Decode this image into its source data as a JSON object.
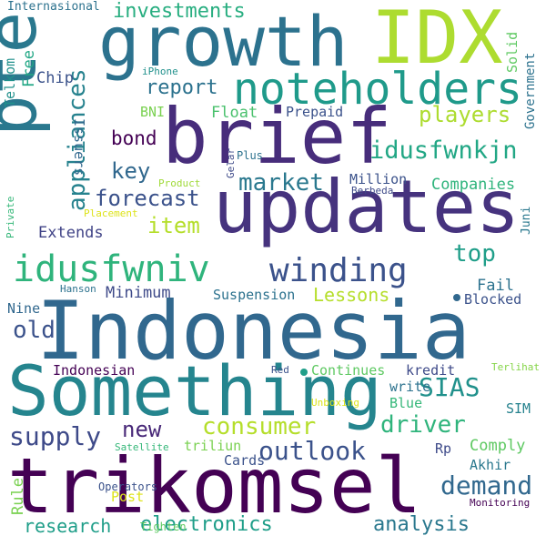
{
  "words": [
    {
      "text": "Indonesia",
      "color": "#31688e"
    },
    {
      "text": "trikomsel",
      "color": "#440154"
    },
    {
      "text": "updates",
      "color": "#46337e"
    },
    {
      "text": "Something",
      "color": "#25858e"
    },
    {
      "text": "brief",
      "color": "#472d7b"
    },
    {
      "text": "growth",
      "color": "#2c728e"
    },
    {
      "text": "IDX",
      "color": "#addc30"
    },
    {
      "text": "pte",
      "color": "#2a788e"
    },
    {
      "text": "noteholders",
      "color": "#1f9a8a"
    },
    {
      "text": "idusfwniv",
      "color": "#2fb47c"
    },
    {
      "text": "winding",
      "color": "#3b528b"
    },
    {
      "text": "idusfwnkjn",
      "color": "#22a785"
    },
    {
      "text": "market",
      "color": "#2a788e"
    },
    {
      "text": "appliances",
      "color": "#26828e"
    },
    {
      "text": "players",
      "color": "#addc30"
    },
    {
      "text": "consumer",
      "color": "#b5de2b"
    },
    {
      "text": "supply",
      "color": "#3e4a89"
    },
    {
      "text": "driver",
      "color": "#2fb47c"
    },
    {
      "text": "demand",
      "color": "#31688e"
    },
    {
      "text": "outlook",
      "color": "#3b528b"
    },
    {
      "text": "SIAS",
      "color": "#21918c"
    },
    {
      "text": "electronics",
      "color": "#1f9e89"
    },
    {
      "text": "research",
      "color": "#1f9e89"
    },
    {
      "text": "analysis",
      "color": "#2a788e"
    },
    {
      "text": "investments",
      "color": "#28ae80"
    },
    {
      "text": "report",
      "color": "#2c728e"
    },
    {
      "text": "forecast",
      "color": "#3b528b"
    },
    {
      "text": "item",
      "color": "#b5de2b"
    },
    {
      "text": "key",
      "color": "#31688e"
    },
    {
      "text": "bond",
      "color": "#440154"
    },
    {
      "text": "Lessons",
      "color": "#b5de2b"
    },
    {
      "text": "top",
      "color": "#1f9e89"
    },
    {
      "text": "old",
      "color": "#3b528b"
    },
    {
      "text": "new",
      "color": "#482878"
    },
    {
      "text": "Companies",
      "color": "#2fb47c"
    },
    {
      "text": "Extends",
      "color": "#414487"
    },
    {
      "text": "Float",
      "color": "#4ac16d"
    },
    {
      "text": "Fail",
      "color": "#2c728e"
    },
    {
      "text": "Minimum",
      "color": "#3e4a89"
    },
    {
      "text": "Suspension",
      "color": "#2c728e"
    },
    {
      "text": "Blocked",
      "color": "#3b528b"
    },
    {
      "text": "Nine",
      "color": "#31688e"
    },
    {
      "text": "Continues",
      "color": "#5ec962"
    },
    {
      "text": "Indonesian",
      "color": "#440154"
    },
    {
      "text": "kredit",
      "color": "#3e4a89"
    },
    {
      "text": "write",
      "color": "#2c728e"
    },
    {
      "text": "Blue",
      "color": "#35b779"
    },
    {
      "text": "SIM",
      "color": "#26828e"
    },
    {
      "text": "Rp",
      "color": "#3e4a89"
    },
    {
      "text": "Comply",
      "color": "#5ec962"
    },
    {
      "text": "Akhir",
      "color": "#2a788e"
    },
    {
      "text": "triliun",
      "color": "#7ad151"
    },
    {
      "text": "Cards",
      "color": "#3b528b"
    },
    {
      "text": "Rule",
      "color": "#7ad151"
    },
    {
      "text": "Post",
      "color": "#dde318"
    },
    {
      "text": "Operators",
      "color": "#3b528b"
    },
    {
      "text": "Satellite",
      "color": "#35b779"
    },
    {
      "text": "Unboxing",
      "color": "#dde318"
    },
    {
      "text": "Monitoring",
      "color": "#440154"
    },
    {
      "text": "Tighten",
      "color": "#5ec962"
    },
    {
      "text": "Red",
      "color": "#3b528b"
    },
    {
      "text": "Terlihat",
      "color": "#86d549"
    },
    {
      "text": "Hanson",
      "color": "#2c728e"
    },
    {
      "text": "Private",
      "color": "#35b779"
    },
    {
      "text": "Placement",
      "color": "#dde318"
    },
    {
      "text": "Product",
      "color": "#a0da39"
    },
    {
      "text": "Berbeda",
      "color": "#3e4a89"
    },
    {
      "text": "Million",
      "color": "#3b528b"
    },
    {
      "text": "Juni",
      "color": "#2a788e"
    },
    {
      "text": "Gelar",
      "color": "#3e4a89"
    },
    {
      "text": "Plus",
      "color": "#2c728e"
    },
    {
      "text": "BNI",
      "color": "#7ad151"
    },
    {
      "text": "Prepaid",
      "color": "#3b528b"
    },
    {
      "text": "iPhone",
      "color": "#21918c"
    },
    {
      "text": "Chip",
      "color": "#3b528b"
    },
    {
      "text": "Free",
      "color": "#22a785"
    },
    {
      "text": "Issuers",
      "color": "#31688e"
    },
    {
      "text": "Telkom",
      "color": "#21918c"
    },
    {
      "text": "Internasional",
      "color": "#2c728e"
    },
    {
      "text": "Solid",
      "color": "#5ec962"
    },
    {
      "text": "Government",
      "color": "#2c728e"
    }
  ],
  "dots": [
    {
      "color": "#1f9e89"
    },
    {
      "color": "#31688e"
    }
  ]
}
